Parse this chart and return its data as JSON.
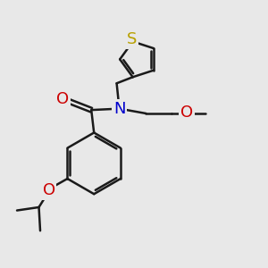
{
  "bg_color": "#e8e8e8",
  "bond_color": "#1a1a1a",
  "S_color": "#b8a000",
  "N_color": "#0000cc",
  "O_color": "#cc0000",
  "bond_width": 1.8,
  "fig_size": [
    3.0,
    3.0
  ],
  "dpi": 100,
  "xlim": [
    0,
    10
  ],
  "ylim": [
    0,
    10
  ]
}
